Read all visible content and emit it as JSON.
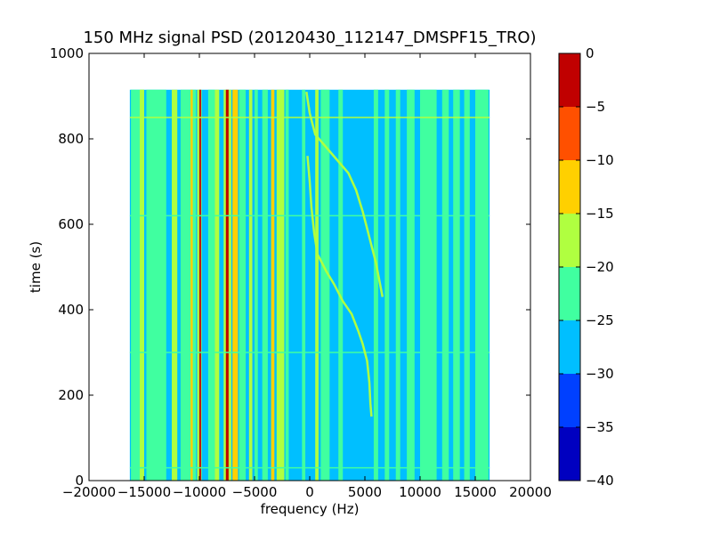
{
  "chart_data": {
    "type": "heatmap",
    "title": "150 MHz signal PSD (20120430_112147_DMSPF15_TRO)",
    "xlabel": "frequency (Hz)",
    "ylabel": "time (s)",
    "xlim": [
      -20000,
      20000
    ],
    "ylim": [
      0,
      1000
    ],
    "xticks": [
      -20000,
      -15000,
      -10000,
      -5000,
      0,
      5000,
      10000,
      15000,
      20000
    ],
    "yticks": [
      0,
      200,
      400,
      600,
      800,
      1000
    ],
    "data_extent": {
      "x": [
        -16300,
        16300
      ],
      "t": [
        0,
        915
      ]
    },
    "background_level": -27.5,
    "colorbar": {
      "levels": [
        -40,
        -35,
        -30,
        -25,
        -20,
        -15,
        -10,
        -5,
        0
      ],
      "colors": [
        "#0000c0",
        "#0040ff",
        "#00bfff",
        "#40ffa0",
        "#b0ff40",
        "#ffd000",
        "#ff5000",
        "#c00000"
      ],
      "ticks": [
        0,
        -5,
        -10,
        -15,
        -20,
        -25,
        -30,
        -35,
        -40
      ]
    },
    "vertical_bands": [
      {
        "f0": -16200,
        "f1": -15000,
        "level": -22.5
      },
      {
        "f0": -15400,
        "f1": -15000,
        "level": -17.5
      },
      {
        "f0": -14800,
        "f1": -13000,
        "level": -22.5
      },
      {
        "f0": -12500,
        "f1": -12000,
        "level": -17.5
      },
      {
        "f0": -11700,
        "f1": -10300,
        "level": -22.5
      },
      {
        "f0": -10800,
        "f1": -10600,
        "level": -12.5
      },
      {
        "f0": -10200,
        "f1": -9800,
        "level": -17.5
      },
      {
        "f0": -10000,
        "f1": -9850,
        "level": -2.5
      },
      {
        "f0": -9200,
        "f1": -8600,
        "level": -22.5
      },
      {
        "f0": -8600,
        "f1": -8200,
        "level": -17.5
      },
      {
        "f0": -7800,
        "f1": -7100,
        "level": -17.5
      },
      {
        "f0": -7600,
        "f1": -7350,
        "level": -2.5
      },
      {
        "f0": -7000,
        "f1": -6500,
        "level": -12.5
      },
      {
        "f0": -6400,
        "f1": -5800,
        "level": -22.5
      },
      {
        "f0": -5500,
        "f1": -5200,
        "level": -17.5
      },
      {
        "f0": -5000,
        "f1": -4700,
        "level": -22.5
      },
      {
        "f0": -4300,
        "f1": -3800,
        "level": -22.5
      },
      {
        "f0": -3500,
        "f1": -3200,
        "level": -12.5
      },
      {
        "f0": -3000,
        "f1": -2300,
        "level": -17.5
      },
      {
        "f0": -2200,
        "f1": -1900,
        "level": -22.5
      },
      {
        "f0": -700,
        "f1": -400,
        "level": -22.5
      },
      {
        "f0": 500,
        "f1": 800,
        "level": -17.5
      },
      {
        "f0": 1000,
        "f1": 1800,
        "level": -22.5
      },
      {
        "f0": 2600,
        "f1": 3000,
        "level": -22.5
      },
      {
        "f0": 5800,
        "f1": 6200,
        "level": -22.5
      },
      {
        "f0": 6800,
        "f1": 7200,
        "level": -22.5
      },
      {
        "f0": 7800,
        "f1": 8200,
        "level": -22.5
      },
      {
        "f0": 8800,
        "f1": 9500,
        "level": -22.5
      },
      {
        "f0": 10000,
        "f1": 11500,
        "level": -22.5
      },
      {
        "f0": 12000,
        "f1": 12600,
        "level": -22.5
      },
      {
        "f0": 13000,
        "f1": 13600,
        "level": -22.5
      },
      {
        "f0": 14000,
        "f1": 14500,
        "level": -22.5
      },
      {
        "f0": 15000,
        "f1": 16200,
        "level": -22.5
      }
    ],
    "horizontal_lines": [
      {
        "t": 30,
        "level": -22.5
      },
      {
        "t": 850,
        "level": -17.5
      },
      {
        "t": 620,
        "level": -22.5
      },
      {
        "t": 300,
        "level": -22.5
      }
    ],
    "doppler_traces": [
      {
        "level": -17.5,
        "points": [
          [
            -200,
            760
          ],
          [
            0,
            700
          ],
          [
            150,
            640
          ],
          [
            400,
            580
          ],
          [
            700,
            530
          ],
          [
            1500,
            490
          ],
          [
            2200,
            460
          ],
          [
            3000,
            420
          ],
          [
            3800,
            390
          ],
          [
            4400,
            350
          ],
          [
            4800,
            320
          ],
          [
            5200,
            280
          ],
          [
            5400,
            230
          ],
          [
            5500,
            180
          ],
          [
            5600,
            150
          ]
        ]
      },
      {
        "level": -17.5,
        "points": [
          [
            -300,
            910
          ],
          [
            0,
            860
          ],
          [
            500,
            810
          ],
          [
            1500,
            780
          ],
          [
            2500,
            750
          ],
          [
            3500,
            720
          ],
          [
            4200,
            680
          ],
          [
            4800,
            630
          ],
          [
            5200,
            590
          ],
          [
            5600,
            550
          ],
          [
            6000,
            510
          ],
          [
            6300,
            470
          ],
          [
            6600,
            430
          ]
        ]
      }
    ]
  }
}
